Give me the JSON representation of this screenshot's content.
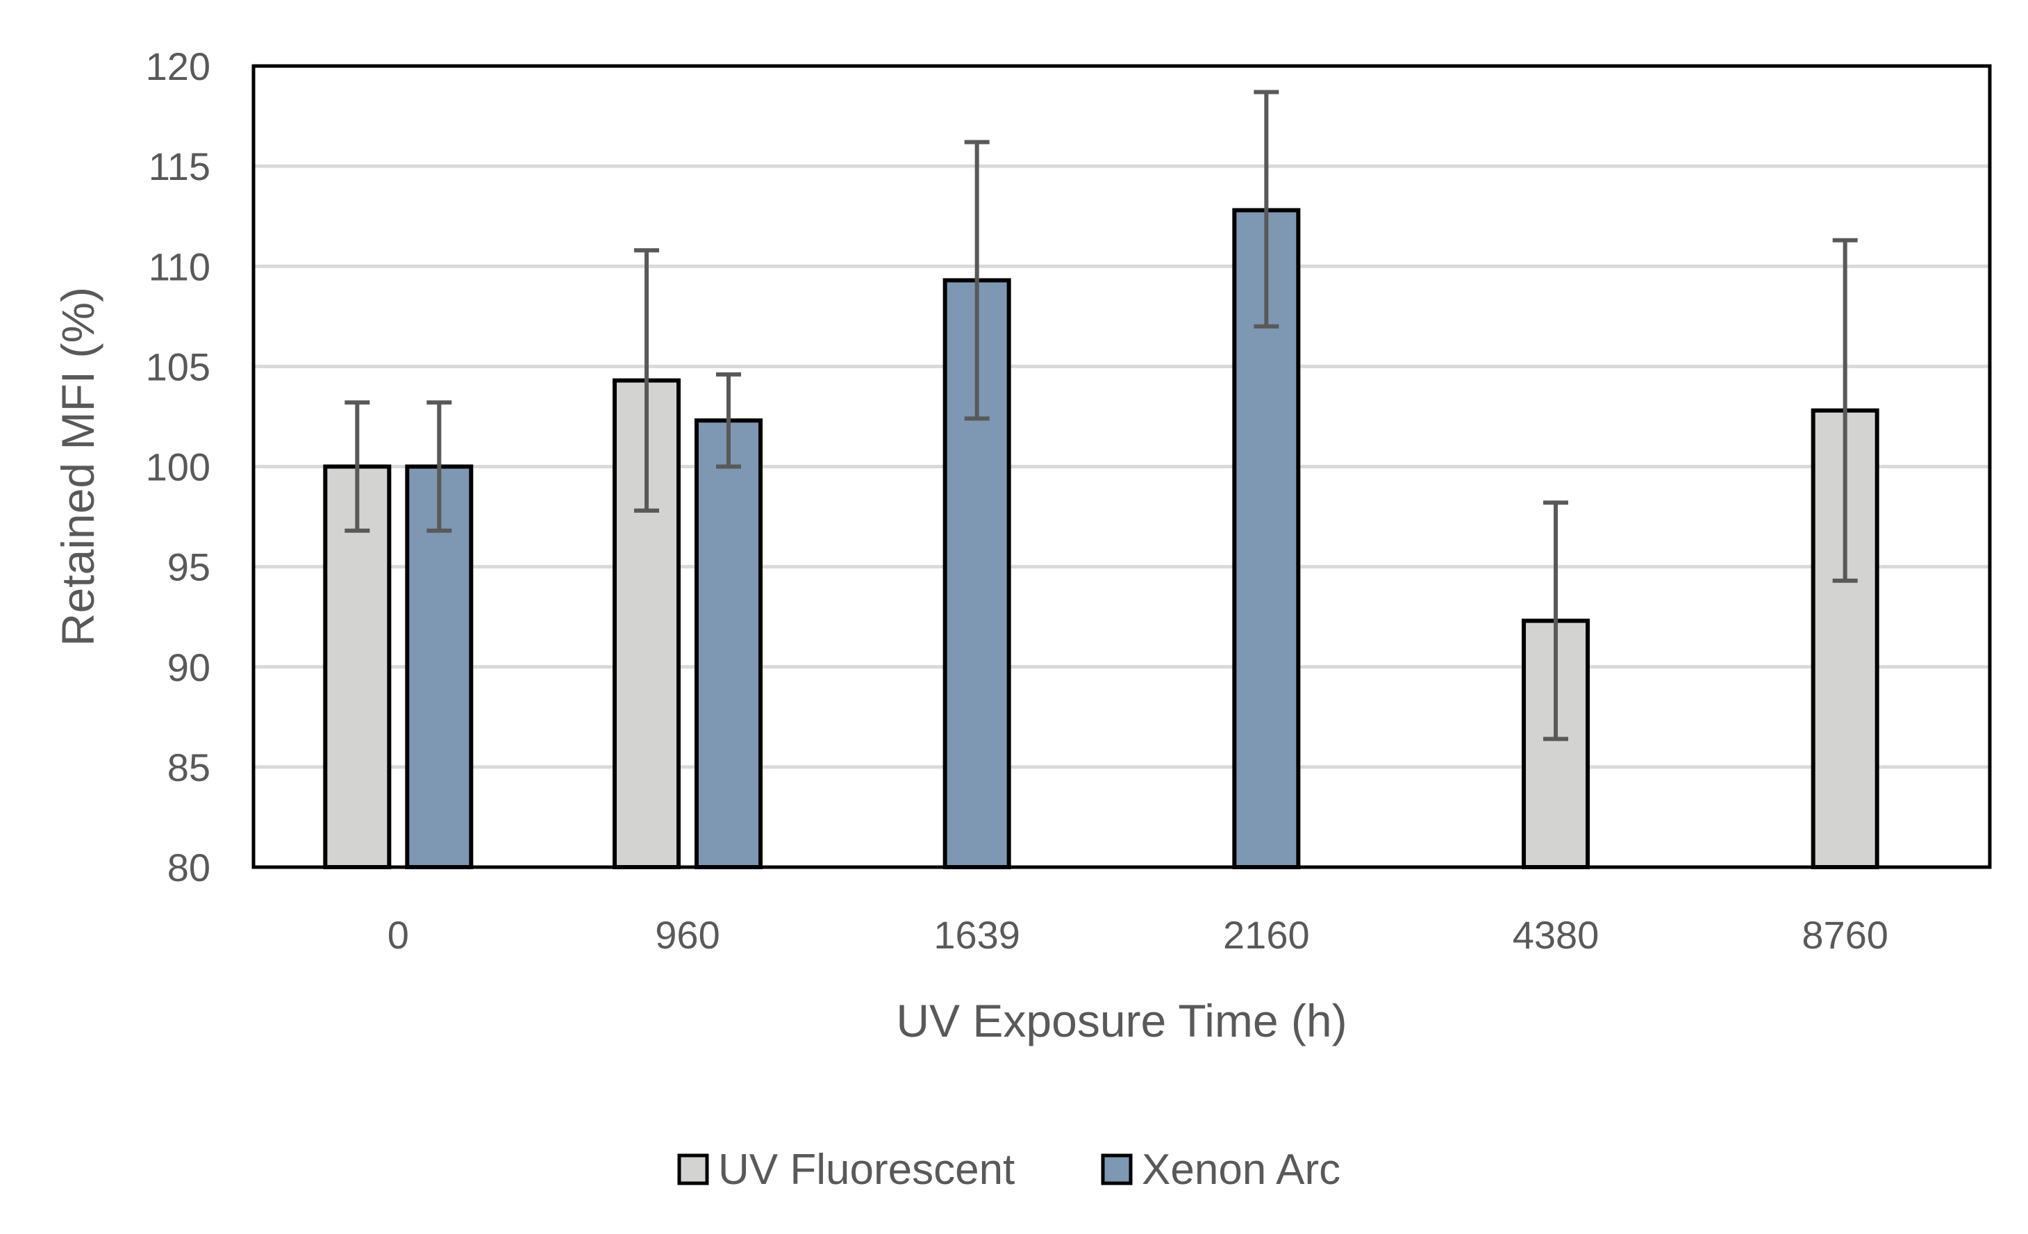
{
  "chart_data": {
    "type": "bar",
    "title": "",
    "xlabel": "UV Exposure Time (h)",
    "ylabel": "Retained MFI (%)",
    "ylim": [
      80,
      120
    ],
    "ytick_step": 5,
    "categories": [
      "0",
      "960",
      "1639",
      "2160",
      "4380",
      "8760"
    ],
    "series": [
      {
        "name": "UV Fluorescent",
        "color": "#d3d3d1",
        "values": [
          100.0,
          104.3,
          null,
          null,
          92.3,
          102.8
        ],
        "err_low": [
          96.8,
          97.8,
          null,
          null,
          86.4,
          94.3
        ],
        "err_high": [
          103.2,
          110.8,
          null,
          null,
          98.2,
          111.3
        ]
      },
      {
        "name": "Xenon Arc",
        "color": "#7e98b3",
        "values": [
          100.0,
          102.3,
          109.3,
          112.8,
          null,
          null
        ],
        "err_low": [
          96.8,
          100.0,
          102.4,
          107.0,
          null,
          null
        ],
        "err_high": [
          103.2,
          104.6,
          116.2,
          118.7,
          null,
          null
        ]
      }
    ],
    "gridlines": true,
    "legend_position": "bottom"
  }
}
